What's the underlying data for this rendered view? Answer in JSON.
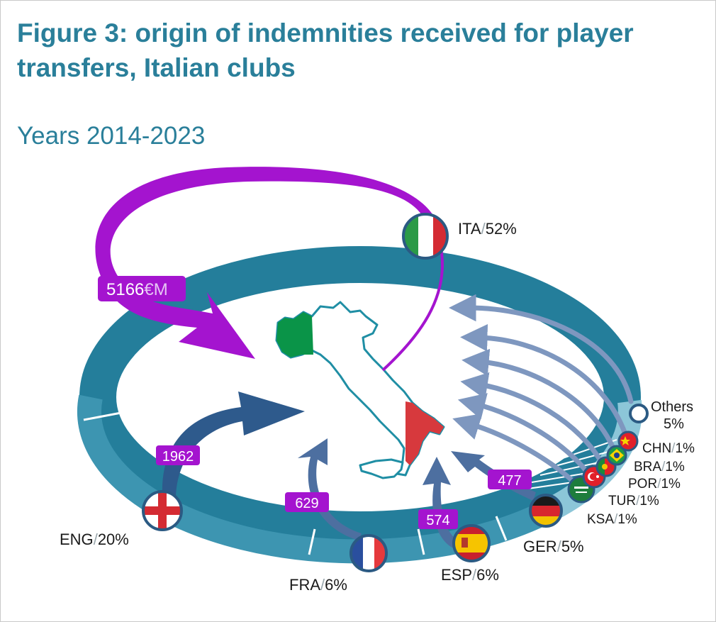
{
  "title": "Figure 3: origin of indemnities received for player transfers, Italian clubs",
  "subtitle": "Years 2014-2023",
  "colors": {
    "title": "#2a7f9a",
    "ring_dark": "#247e9b",
    "ring_mid": "#3d95b1",
    "ring_light": "#8cc6d8",
    "domestic_arrow": "#a414cf",
    "label_box": "#a414cf",
    "eng_arrow": "#2e5a8c",
    "mid_arrow": "#4d6fa0",
    "small_arrow": "#7e97bf",
    "italy_outline": "#1f8ea4"
  },
  "chart_data": {
    "type": "flow-ring",
    "unit": "€M",
    "series": [
      {
        "code": "ITA",
        "pct": "52%",
        "amount": "5166",
        "amount_unit": "€M",
        "flag": "italy-flag-icon"
      },
      {
        "code": "ENG",
        "pct": "20%",
        "amount": "1962",
        "flag": "england-flag-icon"
      },
      {
        "code": "FRA",
        "pct": "6%",
        "amount": "629",
        "flag": "france-flag-icon"
      },
      {
        "code": "ESP",
        "pct": "6%",
        "amount": "574",
        "flag": "spain-flag-icon"
      },
      {
        "code": "GER",
        "pct": "5%",
        "amount": "477",
        "flag": "germany-flag-icon"
      },
      {
        "code": "KSA",
        "pct": "1%",
        "flag": "saudi-flag-icon"
      },
      {
        "code": "TUR",
        "pct": "1%",
        "flag": "turkey-flag-icon"
      },
      {
        "code": "POR",
        "pct": "1%",
        "flag": "portugal-flag-icon"
      },
      {
        "code": "BRA",
        "pct": "1%",
        "flag": "brazil-flag-icon"
      },
      {
        "code": "CHN",
        "pct": "1%",
        "flag": "china-flag-icon"
      },
      {
        "code": "Others",
        "pct": "5%",
        "flag": "others-circle-icon"
      }
    ]
  }
}
